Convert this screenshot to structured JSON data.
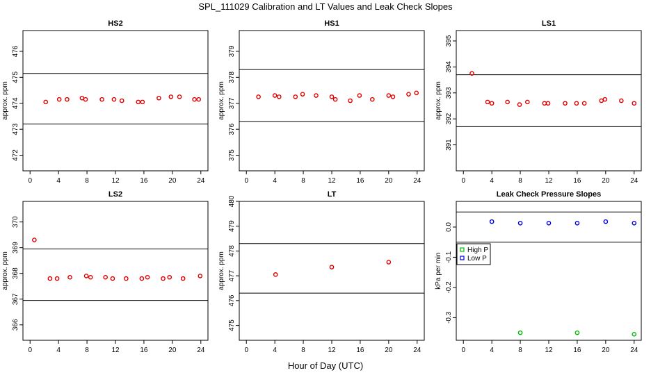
{
  "figure": {
    "title": "SPL_111029  Calibration and LT Values and Leak Check Slopes",
    "xlabel": "Hour of Day (UTC)"
  },
  "chart_data": [
    {
      "type": "scatter",
      "title": "HS2",
      "ylabel": "approx. ppm",
      "xlim": [
        -1,
        25
      ],
      "ylim": [
        471.4,
        476.8
      ],
      "xticks": [
        "0",
        "4",
        "8",
        "12",
        "16",
        "20",
        "24"
      ],
      "yticks": [
        "472",
        "473",
        "474",
        "475",
        "476"
      ],
      "hlines": [
        473.2,
        475.15
      ],
      "marker_color": "#e00000",
      "series": [
        {
          "x": [
            2.2,
            4.1,
            5.2,
            7.3,
            7.8,
            10.1,
            11.8,
            12.9,
            15.2,
            15.8,
            18.1,
            19.8,
            21.0,
            23.1,
            23.7
          ],
          "y": [
            474.05,
            474.15,
            474.15,
            474.2,
            474.15,
            474.15,
            474.15,
            474.1,
            474.05,
            474.05,
            474.2,
            474.25,
            474.25,
            474.15,
            474.15
          ]
        }
      ]
    },
    {
      "type": "scatter",
      "title": "HS1",
      "ylabel": "approx. ppm",
      "xlim": [
        -1,
        25
      ],
      "ylim": [
        374.4,
        379.8
      ],
      "xticks": [
        "0",
        "4",
        "8",
        "12",
        "16",
        "20",
        "24"
      ],
      "yticks": [
        "375",
        "376",
        "377",
        "378",
        "379"
      ],
      "hlines": [
        376.3,
        378.3
      ],
      "marker_color": "#e00000",
      "series": [
        {
          "x": [
            1.7,
            4.0,
            4.6,
            6.9,
            7.9,
            9.8,
            12.0,
            12.5,
            14.6,
            15.9,
            17.7,
            20.0,
            20.6,
            22.8,
            23.9
          ],
          "y": [
            377.25,
            377.3,
            377.25,
            377.25,
            377.35,
            377.3,
            377.25,
            377.15,
            377.1,
            377.3,
            377.15,
            377.3,
            377.25,
            377.35,
            377.4
          ]
        }
      ]
    },
    {
      "type": "scatter",
      "title": "LS1",
      "ylabel": "approx. ppm",
      "xlim": [
        -1,
        25
      ],
      "ylim": [
        390.0,
        395.4
      ],
      "xticks": [
        "0",
        "4",
        "8",
        "12",
        "16",
        "20",
        "24"
      ],
      "yticks": [
        "391",
        "392",
        "393",
        "394",
        "395"
      ],
      "hlines": [
        391.7,
        393.7
      ],
      "marker_color": "#e00000",
      "series": [
        {
          "x": [
            1.2,
            3.4,
            4.0,
            6.2,
            7.9,
            9.0,
            11.4,
            11.9,
            14.3,
            15.9,
            17.0,
            19.4,
            19.9,
            22.2,
            24.0
          ],
          "y": [
            393.75,
            392.65,
            392.6,
            392.65,
            392.55,
            392.65,
            392.6,
            392.6,
            392.6,
            392.6,
            392.6,
            392.7,
            392.75,
            392.7,
            392.6
          ]
        }
      ]
    },
    {
      "type": "scatter",
      "title": "LS2",
      "ylabel": "approx. ppm",
      "xlim": [
        -1,
        25
      ],
      "ylim": [
        365.4,
        370.8
      ],
      "xticks": [
        "0",
        "4",
        "8",
        "12",
        "16",
        "20",
        "24"
      ],
      "yticks": [
        "366",
        "367",
        "368",
        "369",
        "370"
      ],
      "hlines": [
        366.95,
        368.95
      ],
      "marker_color": "#e00000",
      "series": [
        {
          "x": [
            0.6,
            2.8,
            3.8,
            5.6,
            7.9,
            8.5,
            10.6,
            11.6,
            13.5,
            15.7,
            16.5,
            18.7,
            19.6,
            21.5,
            23.9
          ],
          "y": [
            369.3,
            367.8,
            367.8,
            367.85,
            367.9,
            367.85,
            367.85,
            367.8,
            367.8,
            367.8,
            367.85,
            367.8,
            367.85,
            367.8,
            367.9
          ]
        }
      ]
    },
    {
      "type": "scatter",
      "title": "LT",
      "ylabel": "approx. ppm",
      "xlim": [
        -1,
        25
      ],
      "ylim": [
        474.4,
        480.0
      ],
      "xticks": [
        "0",
        "4",
        "8",
        "12",
        "16",
        "20",
        "24"
      ],
      "yticks": [
        "475",
        "476",
        "477",
        "478",
        "479",
        "480"
      ],
      "hlines": [
        476.3,
        478.3
      ],
      "marker_color": "#e00000",
      "series": [
        {
          "x": [
            4.1,
            12.0,
            20.0
          ],
          "y": [
            477.05,
            477.35,
            477.55
          ]
        }
      ]
    },
    {
      "type": "scatter",
      "title": "Leak Check Pressure Slopes",
      "ylabel": "kPa per min",
      "xlim": [
        -1,
        25
      ],
      "ylim": [
        -0.375,
        0.085
      ],
      "xticks": [
        "0",
        "4",
        "8",
        "12",
        "16",
        "20",
        "24"
      ],
      "yticks": [
        "0.0",
        "-0.1",
        "-0.2",
        "-0.3"
      ],
      "ytick_values": [
        0.0,
        -0.1,
        -0.2,
        -0.3
      ],
      "hlines": [
        -0.05,
        0.05
      ],
      "legend": {
        "position": "left",
        "entries": [
          {
            "label": "High P",
            "color": "#00bb00"
          },
          {
            "label": "Low P",
            "color": "#0000dd"
          }
        ]
      },
      "series": [
        {
          "name": "High P",
          "color": "#00bb00",
          "x": [
            8.0,
            16.0,
            24.0
          ],
          "y": [
            -0.35,
            -0.35,
            -0.355
          ]
        },
        {
          "name": "Low P",
          "color": "#0000dd",
          "x": [
            4.0,
            8.0,
            12.0,
            16.0,
            20.0,
            24.0
          ],
          "y": [
            0.018,
            0.013,
            0.013,
            0.013,
            0.018,
            0.013
          ]
        }
      ]
    }
  ]
}
